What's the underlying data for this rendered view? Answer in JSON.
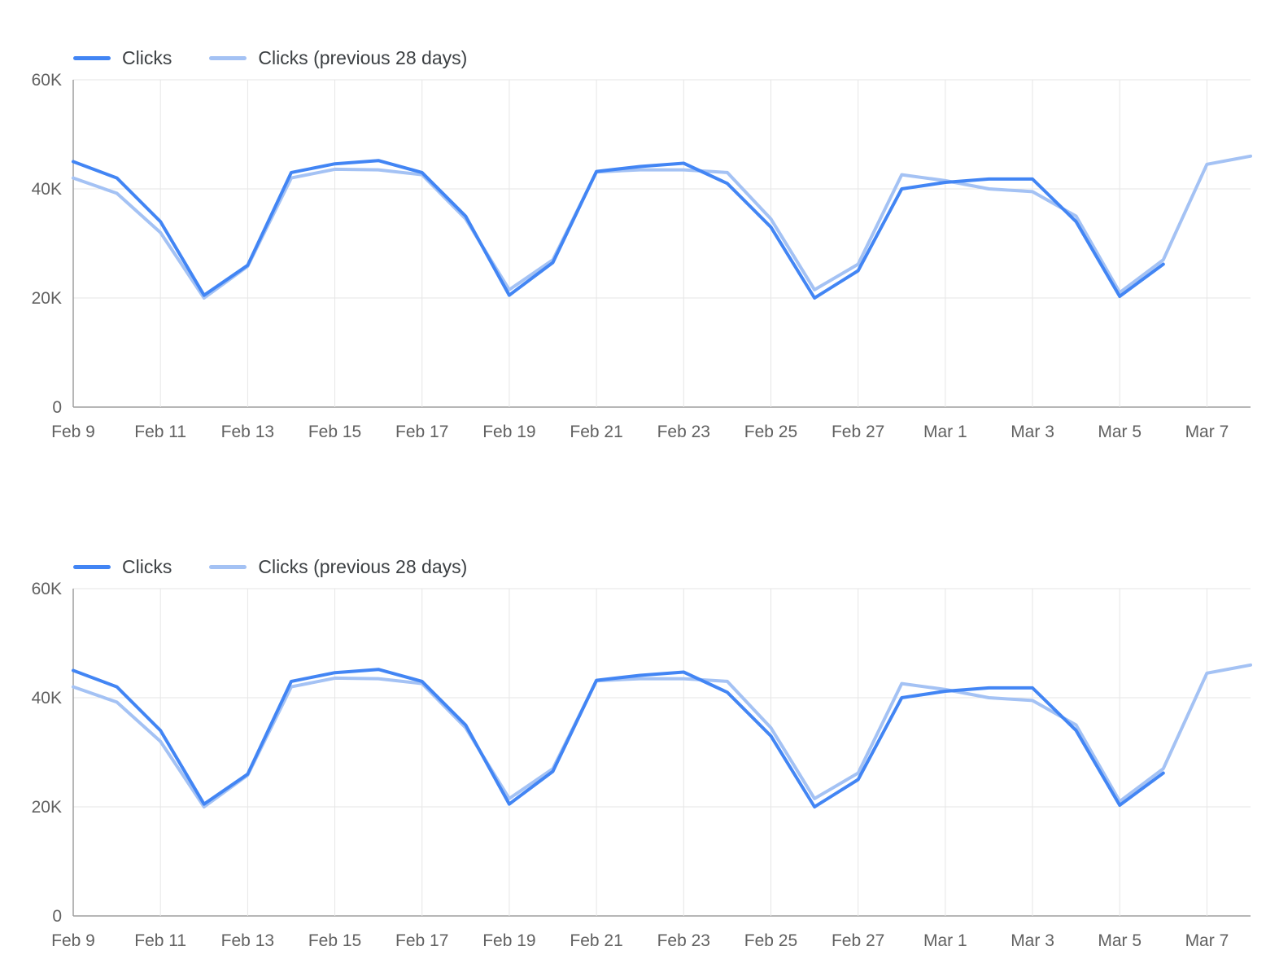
{
  "colors": {
    "clicks_line": "#4285f4",
    "previous_line": "#a4c2f4",
    "gridline": "#e6e6e6",
    "axis_line": "#9e9e9e",
    "tick_text": "#616161"
  },
  "charts": [
    {
      "name": "clicks-comparison-chart-top"
    },
    {
      "name": "clicks-comparison-chart-bottom"
    }
  ],
  "chart_data": [
    {
      "type": "line",
      "title": "",
      "xlabel": "",
      "ylabel": "",
      "ylim": [
        0,
        60000
      ],
      "grid": true,
      "legend_position": "top-left",
      "ytick_values": [
        0,
        20000,
        40000,
        60000
      ],
      "ytick_labels": [
        "0",
        "20K",
        "40K",
        "60K"
      ],
      "x": [
        "Feb 9",
        "Feb 10",
        "Feb 11",
        "Feb 12",
        "Feb 13",
        "Feb 14",
        "Feb 15",
        "Feb 16",
        "Feb 17",
        "Feb 18",
        "Feb 19",
        "Feb 20",
        "Feb 21",
        "Feb 22",
        "Feb 23",
        "Feb 24",
        "Feb 25",
        "Feb 26",
        "Feb 27",
        "Feb 28",
        "Mar 1",
        "Mar 2",
        "Mar 3",
        "Mar 4",
        "Mar 5",
        "Mar 6",
        "Mar 7",
        "Mar 8"
      ],
      "xtick_indices": [
        0,
        2,
        4,
        6,
        8,
        10,
        12,
        14,
        16,
        18,
        20,
        22,
        24,
        26
      ],
      "xtick_labels": [
        "Feb 9",
        "Feb 11",
        "Feb 13",
        "Feb 15",
        "Feb 17",
        "Feb 19",
        "Feb 21",
        "Feb 23",
        "Feb 25",
        "Feb 27",
        "Mar 1",
        "Mar 3",
        "Mar 5",
        "Mar 7"
      ],
      "series": [
        {
          "name": "Clicks",
          "color": "#4285f4",
          "values": [
            45000,
            42000,
            34000,
            20500,
            26000,
            43000,
            44600,
            45200,
            43000,
            35000,
            20500,
            26500,
            43200,
            44100,
            44700,
            41000,
            33000,
            20000,
            25000,
            40000,
            41200,
            41800,
            41800,
            34000,
            20300,
            26200
          ]
        },
        {
          "name": "Clicks (previous 28 days)",
          "color": "#a4c2f4",
          "values": [
            42000,
            39200,
            32000,
            20000,
            25800,
            42000,
            43600,
            43500,
            42600,
            34500,
            21500,
            27000,
            43100,
            43500,
            43500,
            43000,
            34500,
            21500,
            26200,
            42600,
            41500,
            40000,
            39500,
            35000,
            21000,
            27000,
            44500,
            46000
          ]
        }
      ]
    },
    {
      "type": "line",
      "title": "",
      "xlabel": "",
      "ylabel": "",
      "ylim": [
        0,
        60000
      ],
      "grid": true,
      "legend_position": "top-left",
      "ytick_values": [
        0,
        20000,
        40000,
        60000
      ],
      "ytick_labels": [
        "0",
        "20K",
        "40K",
        "60K"
      ],
      "x": [
        "Feb 9",
        "Feb 10",
        "Feb 11",
        "Feb 12",
        "Feb 13",
        "Feb 14",
        "Feb 15",
        "Feb 16",
        "Feb 17",
        "Feb 18",
        "Feb 19",
        "Feb 20",
        "Feb 21",
        "Feb 22",
        "Feb 23",
        "Feb 24",
        "Feb 25",
        "Feb 26",
        "Feb 27",
        "Feb 28",
        "Mar 1",
        "Mar 2",
        "Mar 3",
        "Mar 4",
        "Mar 5",
        "Mar 6",
        "Mar 7",
        "Mar 8"
      ],
      "xtick_indices": [
        0,
        2,
        4,
        6,
        8,
        10,
        12,
        14,
        16,
        18,
        20,
        22,
        24,
        26
      ],
      "xtick_labels": [
        "Feb 9",
        "Feb 11",
        "Feb 13",
        "Feb 15",
        "Feb 17",
        "Feb 19",
        "Feb 21",
        "Feb 23",
        "Feb 25",
        "Feb 27",
        "Mar 1",
        "Mar 3",
        "Mar 5",
        "Mar 7"
      ],
      "series": [
        {
          "name": "Clicks",
          "color": "#4285f4",
          "values": [
            45000,
            42000,
            34000,
            20500,
            26000,
            43000,
            44600,
            45200,
            43000,
            35000,
            20500,
            26500,
            43200,
            44100,
            44700,
            41000,
            33000,
            20000,
            25000,
            40000,
            41200,
            41800,
            41800,
            34000,
            20300,
            26200
          ]
        },
        {
          "name": "Clicks (previous 28 days)",
          "color": "#a4c2f4",
          "values": [
            42000,
            39200,
            32000,
            20000,
            25800,
            42000,
            43600,
            43500,
            42600,
            34500,
            21500,
            27000,
            43100,
            43500,
            43500,
            43000,
            34500,
            21500,
            26200,
            42600,
            41500,
            40000,
            39500,
            35000,
            21000,
            27000,
            44500,
            46000
          ]
        }
      ]
    }
  ]
}
